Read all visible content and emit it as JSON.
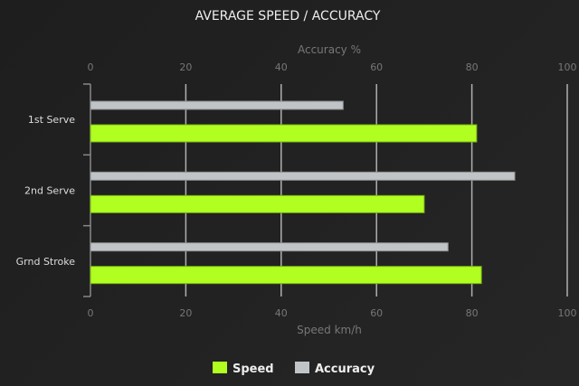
{
  "chart_data": {
    "type": "bar",
    "orientation": "horizontal",
    "title": "AVERAGE SPEED / ACCURACY",
    "categories": [
      "1st Serve",
      "2nd Serve",
      "Grnd Stroke"
    ],
    "series": [
      {
        "name": "Accuracy",
        "values": [
          53,
          89,
          75
        ],
        "color": "#c0c4c6",
        "axis": "top"
      },
      {
        "name": "Speed",
        "values": [
          81,
          70,
          82
        ],
        "color": "#b0ff20",
        "axis": "bottom"
      }
    ],
    "top_axis": {
      "label": "Accuracy %",
      "range": [
        0,
        100
      ],
      "ticks": [
        "0",
        "20",
        "40",
        "60",
        "80",
        "100"
      ]
    },
    "bottom_axis": {
      "label": "Speed km/h",
      "range": [
        0,
        100
      ],
      "ticks": [
        "0",
        "20",
        "40",
        "60",
        "80",
        "100"
      ]
    },
    "grid": true,
    "legend": {
      "placement": "bottom",
      "items": [
        "Speed",
        "Accuracy"
      ]
    }
  }
}
